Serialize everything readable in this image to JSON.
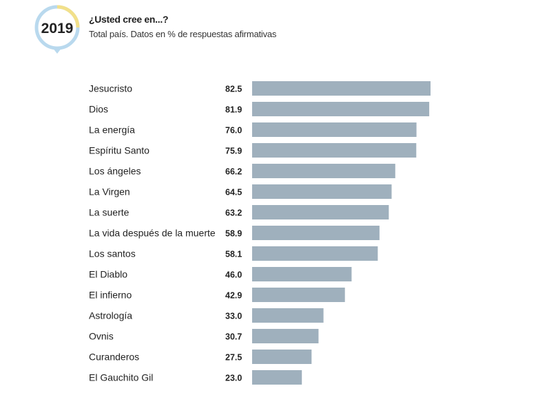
{
  "badge": {
    "year": "2019",
    "ring_colors": [
      "#f2e08a",
      "#b9d9ee"
    ]
  },
  "header": {
    "title": "¿Usted cree en...?",
    "subtitle": "Total país. Datos en % de respuestas afirmativas"
  },
  "chart_data": {
    "type": "bar",
    "orientation": "horizontal",
    "title": "¿Usted cree en...?",
    "subtitle": "Total país. Datos en % de respuestas afirmativas",
    "categories": [
      "Jesucristo",
      "Dios",
      "La energía",
      "Espíritu Santo",
      "Los ángeles",
      "La Virgen",
      "La suerte",
      "La vida después de la muerte",
      "Los santos",
      "El Diablo",
      "El infierno",
      "Astrología",
      "Ovnis",
      "Curanderos",
      "El Gauchito Gil"
    ],
    "values": [
      82.5,
      81.9,
      76.0,
      75.9,
      66.2,
      64.5,
      63.2,
      58.9,
      58.1,
      46.0,
      42.9,
      33.0,
      30.7,
      27.5,
      23.0
    ],
    "value_labels": [
      "82.5",
      "81.9",
      "76.0",
      "75.9",
      "66.2",
      "64.5",
      "63.2",
      "58.9",
      "58.1",
      "46.0",
      "42.9",
      "33.0",
      "30.7",
      "27.5",
      "23.0"
    ],
    "bar_color": "#9fb0bd",
    "xlim": [
      0,
      100
    ],
    "grid": false,
    "legend": "none"
  }
}
